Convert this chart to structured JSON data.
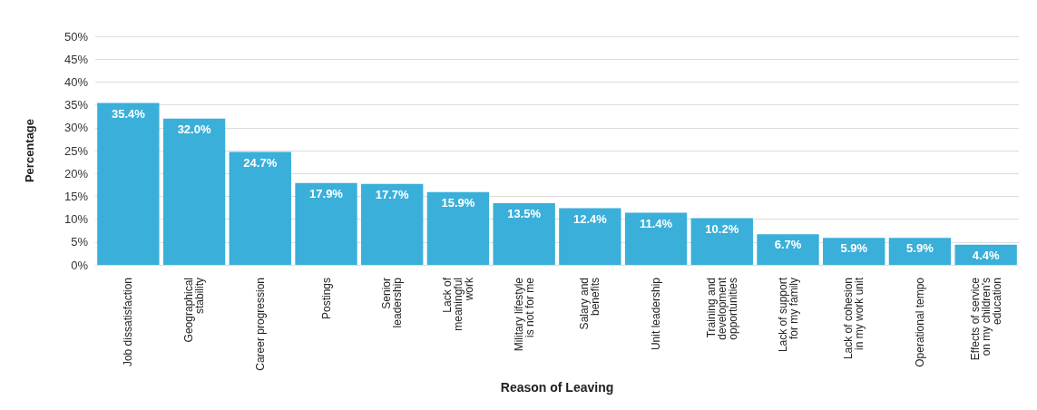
{
  "chart_data": {
    "type": "bar",
    "xlabel": "Reason of Leaving",
    "ylabel": "Percentage",
    "categories": [
      "Job dissatisfaction",
      "Geographical\nstability",
      "Career progression",
      "Postings",
      "Senior\nleadership",
      "Lack of\nmeaningful\nwork",
      "Military lifestyle\nis not for me",
      "Salary and\nbenefits",
      "Unit leadership",
      "Training and\ndevelopment\nopportunities",
      "Lack of support\nfor my family",
      "Lack of cohesion\nin my work unit",
      "Operational tempo",
      "Effects of service\non my children's\neducation"
    ],
    "values": [
      35.4,
      32.0,
      24.7,
      17.9,
      17.7,
      15.9,
      13.5,
      12.4,
      11.4,
      10.2,
      6.7,
      5.9,
      5.9,
      4.4
    ],
    "value_labels": [
      "35.4%",
      "32.0%",
      "24.7%",
      "17.9%",
      "17.7%",
      "15.9%",
      "13.5%",
      "12.4%",
      "11.4%",
      "10.2%",
      "6.7%",
      "5.9%",
      "5.9%",
      "4.4%"
    ],
    "color": "#3aafd9",
    "ylim": [
      0,
      50
    ],
    "yticks": [
      {
        "value": 0,
        "label": "0%"
      },
      {
        "value": 5,
        "label": "5%"
      },
      {
        "value": 10,
        "label": "10%"
      },
      {
        "value": 15,
        "label": "15%"
      },
      {
        "value": 20,
        "label": "20%"
      },
      {
        "value": 25,
        "label": "25%"
      },
      {
        "value": 30,
        "label": "30%"
      },
      {
        "value": 35,
        "label": "35%"
      },
      {
        "value": 40,
        "label": "40%"
      },
      {
        "value": 45,
        "label": "45%"
      },
      {
        "value": 50,
        "label": "50%"
      }
    ],
    "grid": "y"
  }
}
